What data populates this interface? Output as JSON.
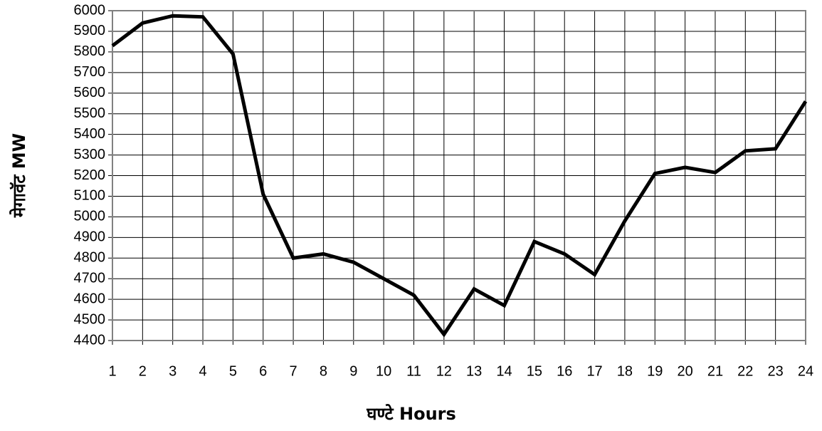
{
  "chart_data": {
    "type": "line",
    "xlabel": "घण्टे Hours",
    "ylabel": "मेगावॅट MW",
    "x": [
      1,
      2,
      3,
      4,
      5,
      6,
      7,
      8,
      9,
      10,
      11,
      12,
      13,
      14,
      15,
      16,
      17,
      18,
      19,
      20,
      21,
      22,
      23,
      24
    ],
    "series": [
      {
        "name": "MW",
        "color": "#000000",
        "values": [
          5830,
          5940,
          5975,
          5970,
          5790,
          5110,
          4800,
          4820,
          4780,
          4700,
          4620,
          4430,
          4650,
          4570,
          4880,
          4820,
          4720,
          4980,
          5210,
          5240,
          5215,
          5320,
          5330,
          5560
        ]
      }
    ],
    "xlim": [
      1,
      24
    ],
    "xticks": [
      1,
      2,
      3,
      4,
      5,
      6,
      7,
      8,
      9,
      10,
      11,
      12,
      13,
      14,
      15,
      16,
      17,
      18,
      19,
      20,
      21,
      22,
      23,
      24
    ],
    "ylim": [
      4400,
      6000
    ],
    "yticks": [
      4400,
      4500,
      4600,
      4700,
      4800,
      4900,
      5000,
      5100,
      5200,
      5300,
      5400,
      5500,
      5600,
      5700,
      5800,
      5900,
      6000
    ],
    "grid": true
  }
}
